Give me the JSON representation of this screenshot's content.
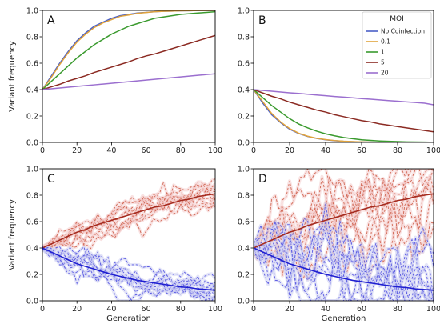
{
  "colors": {
    "No Coinfection": "#4a5fc6",
    "0.1": "#e0a33c",
    "1": "#3a9a2e",
    "5": "#8b2a22",
    "20": "#9b6fcf",
    "blue_mean": "#1f1fd0",
    "red_mean": "#a52a1e",
    "blue_sim": "#4a4ae0",
    "red_sim": "#cc5a44",
    "red_band": "#f4cccc",
    "blue_band": "#cdd0f2"
  },
  "chart_data": [
    {
      "type": "line",
      "panel_label": "A",
      "xlabel": "",
      "ylabel": "Variant frequency",
      "xlim": [
        0,
        100
      ],
      "ylim": [
        0,
        1.0
      ],
      "x": [
        0,
        5,
        10,
        15,
        20,
        25,
        30,
        35,
        40,
        45,
        50,
        55,
        60,
        65,
        70,
        75,
        80,
        85,
        90,
        95,
        100
      ],
      "xticks": [
        "0",
        "20",
        "40",
        "60",
        "80",
        "100"
      ],
      "yticks": [
        "0.0",
        "0.2",
        "0.4",
        "0.6",
        "0.8",
        "1.0"
      ],
      "series": [
        {
          "name": "No Coinfection",
          "color_key": "No Coinfection",
          "values": [
            0.4,
            0.5,
            0.6,
            0.69,
            0.77,
            0.83,
            0.88,
            0.91,
            0.94,
            0.96,
            0.97,
            0.98,
            0.985,
            0.99,
            0.993,
            0.995,
            0.997,
            0.998,
            0.999,
            0.999,
            1.0
          ]
        },
        {
          "name": "0.1",
          "color_key": "0.1",
          "values": [
            0.4,
            0.49,
            0.59,
            0.68,
            0.76,
            0.82,
            0.87,
            0.905,
            0.93,
            0.955,
            0.965,
            0.978,
            0.984,
            0.99,
            0.993,
            0.995,
            0.997,
            0.998,
            0.999,
            0.999,
            1.0
          ]
        },
        {
          "name": "1",
          "color_key": "1",
          "values": [
            0.4,
            0.46,
            0.52,
            0.58,
            0.64,
            0.69,
            0.74,
            0.78,
            0.82,
            0.85,
            0.88,
            0.9,
            0.92,
            0.94,
            0.95,
            0.96,
            0.97,
            0.975,
            0.98,
            0.985,
            0.99
          ]
        },
        {
          "name": "5",
          "color_key": "5",
          "values": [
            0.4,
            0.42,
            0.44,
            0.465,
            0.485,
            0.505,
            0.53,
            0.55,
            0.57,
            0.59,
            0.61,
            0.635,
            0.655,
            0.67,
            0.69,
            0.71,
            0.73,
            0.75,
            0.77,
            0.79,
            0.81
          ]
        },
        {
          "name": "20",
          "color_key": "20",
          "values": [
            0.4,
            0.406,
            0.412,
            0.418,
            0.424,
            0.43,
            0.436,
            0.442,
            0.448,
            0.454,
            0.46,
            0.466,
            0.472,
            0.478,
            0.484,
            0.49,
            0.496,
            0.502,
            0.508,
            0.514,
            0.52
          ]
        }
      ]
    },
    {
      "type": "line",
      "panel_label": "B",
      "xlabel": "",
      "ylabel": "",
      "xlim": [
        0,
        100
      ],
      "ylim": [
        0,
        1.0
      ],
      "x": [
        0,
        5,
        10,
        15,
        20,
        25,
        30,
        35,
        40,
        45,
        50,
        55,
        60,
        65,
        70,
        75,
        80,
        85,
        90,
        95,
        100
      ],
      "xticks": [
        "0",
        "20",
        "40",
        "60",
        "80",
        "100"
      ],
      "yticks": [
        "0.0",
        "0.2",
        "0.4",
        "0.6",
        "0.8",
        "1.0"
      ],
      "legend": {
        "title": "MOI",
        "position": "top-right",
        "entries": [
          "No Coinfection",
          "0.1",
          "1",
          "5",
          "20"
        ]
      },
      "series": [
        {
          "name": "No Coinfection",
          "color_key": "No Coinfection",
          "values": [
            0.4,
            0.3,
            0.21,
            0.15,
            0.1,
            0.068,
            0.045,
            0.03,
            0.02,
            0.013,
            0.008,
            0.005,
            0.003,
            0.002,
            0.001,
            0.001,
            0.0,
            0.0,
            0.0,
            0.0,
            0.0
          ]
        },
        {
          "name": "0.1",
          "color_key": "0.1",
          "values": [
            0.4,
            0.31,
            0.22,
            0.155,
            0.105,
            0.07,
            0.047,
            0.031,
            0.021,
            0.014,
            0.009,
            0.006,
            0.004,
            0.002,
            0.001,
            0.001,
            0.0,
            0.0,
            0.0,
            0.0,
            0.0
          ]
        },
        {
          "name": "1",
          "color_key": "1",
          "values": [
            0.4,
            0.34,
            0.28,
            0.23,
            0.18,
            0.14,
            0.11,
            0.085,
            0.065,
            0.05,
            0.037,
            0.028,
            0.02,
            0.015,
            0.011,
            0.008,
            0.006,
            0.004,
            0.003,
            0.002,
            0.001
          ]
        },
        {
          "name": "5",
          "color_key": "5",
          "values": [
            0.4,
            0.375,
            0.35,
            0.33,
            0.305,
            0.285,
            0.265,
            0.245,
            0.23,
            0.21,
            0.195,
            0.18,
            0.165,
            0.155,
            0.14,
            0.13,
            0.12,
            0.11,
            0.1,
            0.09,
            0.08
          ]
        },
        {
          "name": "20",
          "color_key": "20",
          "values": [
            0.4,
            0.394,
            0.388,
            0.382,
            0.376,
            0.371,
            0.365,
            0.359,
            0.354,
            0.348,
            0.343,
            0.338,
            0.332,
            0.327,
            0.322,
            0.317,
            0.312,
            0.307,
            0.302,
            0.297,
            0.285
          ]
        }
      ]
    },
    {
      "type": "line",
      "panel_label": "C",
      "xlabel": "Generation",
      "ylabel": "Variant frequency",
      "xlim": [
        0,
        100
      ],
      "ylim": [
        0,
        1.0
      ],
      "x": [
        0,
        5,
        10,
        15,
        20,
        25,
        30,
        35,
        40,
        45,
        50,
        55,
        60,
        65,
        70,
        75,
        80,
        85,
        90,
        95,
        100
      ],
      "xticks": [
        "0",
        "20",
        "40",
        "60",
        "80",
        "100"
      ],
      "yticks": [
        "0.0",
        "0.2",
        "0.4",
        "0.6",
        "0.8",
        "1.0"
      ],
      "means": [
        {
          "color_key": "red_mean",
          "values": [
            0.4,
            0.43,
            0.46,
            0.49,
            0.52,
            0.54,
            0.57,
            0.59,
            0.61,
            0.63,
            0.65,
            0.67,
            0.69,
            0.71,
            0.72,
            0.74,
            0.76,
            0.77,
            0.79,
            0.8,
            0.81
          ]
        },
        {
          "color_key": "blue_mean",
          "values": [
            0.4,
            0.37,
            0.34,
            0.31,
            0.28,
            0.26,
            0.24,
            0.22,
            0.2,
            0.185,
            0.17,
            0.155,
            0.145,
            0.135,
            0.125,
            0.115,
            0.105,
            0.1,
            0.09,
            0.085,
            0.08
          ]
        }
      ],
      "sim_spread": 0.09
    },
    {
      "type": "line",
      "panel_label": "D",
      "xlabel": "Generation",
      "ylabel": "",
      "xlim": [
        0,
        100
      ],
      "ylim": [
        0,
        1.0
      ],
      "x": [
        0,
        5,
        10,
        15,
        20,
        25,
        30,
        35,
        40,
        45,
        50,
        55,
        60,
        65,
        70,
        75,
        80,
        85,
        90,
        95,
        100
      ],
      "xticks": [
        "0",
        "20",
        "40",
        "60",
        "80",
        "100"
      ],
      "yticks": [
        "0.0",
        "0.2",
        "0.4",
        "0.6",
        "0.8",
        "1.0"
      ],
      "means": [
        {
          "color_key": "red_mean",
          "values": [
            0.4,
            0.43,
            0.46,
            0.49,
            0.52,
            0.54,
            0.57,
            0.59,
            0.61,
            0.63,
            0.65,
            0.67,
            0.69,
            0.71,
            0.72,
            0.74,
            0.76,
            0.77,
            0.79,
            0.8,
            0.81
          ]
        },
        {
          "color_key": "blue_mean",
          "values": [
            0.4,
            0.37,
            0.34,
            0.31,
            0.28,
            0.26,
            0.24,
            0.22,
            0.2,
            0.185,
            0.17,
            0.155,
            0.145,
            0.135,
            0.125,
            0.115,
            0.105,
            0.1,
            0.09,
            0.085,
            0.08
          ]
        }
      ],
      "sim_spread": 0.3
    }
  ]
}
